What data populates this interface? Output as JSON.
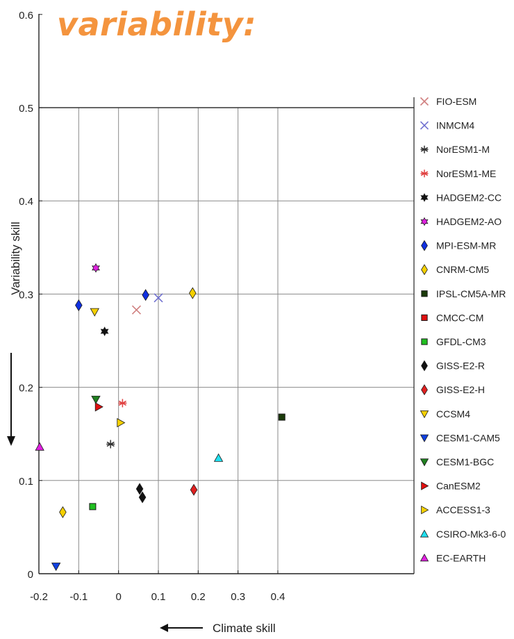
{
  "heading": "variability:",
  "chart_data": {
    "type": "scatter",
    "title": "",
    "xlabel": "Climate skill",
    "ylabel": "Variability skill",
    "xlim": [
      -0.2,
      0.43
    ],
    "ylim": [
      0,
      0.6
    ],
    "x_ticks": [
      "-0.2",
      "-0.1",
      "0",
      "0.1",
      "0.2",
      "0.3",
      "0.4"
    ],
    "y_ticks": [
      "0",
      "0.1",
      "0.2",
      "0.3",
      "0.4",
      "0.5",
      "0.6"
    ],
    "grid": true,
    "legend_position": "right",
    "series": [
      {
        "name": "FIO-ESM",
        "marker": "x",
        "color": "#d08080",
        "points": [
          [
            0.045,
            0.283
          ]
        ]
      },
      {
        "name": "INMCM4",
        "marker": "x",
        "color": "#7070d0",
        "points": [
          [
            0.1,
            0.296
          ]
        ]
      },
      {
        "name": "NorESM1-M",
        "marker": "asterisk",
        "color": "#333333",
        "points": [
          [
            -0.02,
            0.139
          ]
        ]
      },
      {
        "name": "NorESM1-ME",
        "marker": "asterisk",
        "color": "#e04040",
        "points": [
          [
            0.01,
            0.183
          ]
        ]
      },
      {
        "name": "HADGEM2-CC",
        "marker": "hexagram",
        "color": "#111111",
        "points": [
          [
            -0.035,
            0.26
          ]
        ]
      },
      {
        "name": "HADGEM2-AO",
        "marker": "hexagram",
        "color": "#e020e0",
        "points": [
          [
            -0.057,
            0.328
          ]
        ]
      },
      {
        "name": "MPI-ESM-MR",
        "marker": "diamond",
        "color": "#1030e0",
        "points": [
          [
            -0.1,
            0.288
          ],
          [
            0.068,
            0.299
          ]
        ]
      },
      {
        "name": "CNRM-CM5",
        "marker": "diamond",
        "color": "#f5d000",
        "points": [
          [
            -0.14,
            0.066
          ],
          [
            0.186,
            0.301
          ]
        ]
      },
      {
        "name": "IPSL-CM5A-MR",
        "marker": "square",
        "color": "#1a3a0a",
        "points": [
          [
            0.41,
            0.168
          ]
        ]
      },
      {
        "name": "CMCC-CM",
        "marker": "square",
        "color": "#e01010",
        "points": []
      },
      {
        "name": "GFDL-CM3",
        "marker": "square",
        "color": "#20c020",
        "points": [
          [
            -0.065,
            0.072
          ]
        ]
      },
      {
        "name": "GISS-E2-R",
        "marker": "diamond",
        "color": "#111111",
        "points": [
          [
            0.053,
            0.091
          ],
          [
            0.06,
            0.082
          ]
        ]
      },
      {
        "name": "GISS-E2-H",
        "marker": "diamond",
        "color": "#e02020",
        "points": [
          [
            0.189,
            0.09
          ]
        ]
      },
      {
        "name": "CCSM4",
        "marker": "triangle-down",
        "color": "#f5d000",
        "points": [
          [
            -0.06,
            0.281
          ]
        ]
      },
      {
        "name": "CESM1-CAM5",
        "marker": "triangle-down",
        "color": "#1040e0",
        "points": [
          [
            -0.157,
            0.008
          ]
        ]
      },
      {
        "name": "CESM1-BGC",
        "marker": "triangle-down",
        "color": "#208020",
        "points": [
          [
            -0.057,
            0.187
          ]
        ]
      },
      {
        "name": "CanESM2",
        "marker": "triangle-right",
        "color": "#e01010",
        "points": [
          [
            -0.05,
            0.179
          ]
        ]
      },
      {
        "name": "ACCESS1-3",
        "marker": "triangle-right",
        "color": "#f5d000",
        "points": [
          [
            0.005,
            0.162
          ]
        ]
      },
      {
        "name": "CSIRO-Mk3-6-0",
        "marker": "triangle-up",
        "color": "#20e0f0",
        "points": [
          [
            0.251,
            0.124
          ]
        ]
      },
      {
        "name": "EC-EARTH",
        "marker": "triangle-up",
        "color": "#e020e0",
        "points": [
          [
            -0.198,
            0.136
          ]
        ]
      }
    ]
  }
}
